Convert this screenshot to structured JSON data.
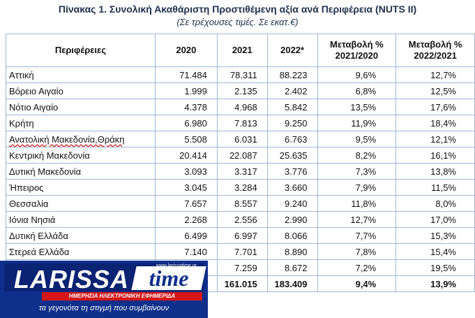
{
  "title": "Πίνακας 1. Συνολική Ακαθάριστη Προστιθέμενη αξία ανά  Περιφέρεια (NUTS II)",
  "subtitle": "(Σε τρέχουσες τιμές. Σε εκατ.€)",
  "table": {
    "headers": [
      "Περιφέρειες",
      "2020",
      "2021",
      "2022*",
      "Μεταβολή % 2021/2020",
      "Μεταβολή % 2022/2021"
    ],
    "rows": [
      [
        "Αττική",
        "71.484",
        "78.311",
        "88.223",
        "9,6%",
        "12,7%"
      ],
      [
        "Βόρειο Αιγαίο",
        "1.999",
        "2.135",
        "2.402",
        "6,8%",
        "12,5%"
      ],
      [
        "Νότιο Αιγαίο",
        "4.378",
        "4.968",
        "5.842",
        "13,5%",
        "17,6%"
      ],
      [
        "Κρήτη",
        "6.980",
        "7.813",
        "9.250",
        "11,9%",
        "18,4%"
      ],
      [
        "Ανατολική Μακεδονία,Θράκη",
        "5.508",
        "6.031",
        "6.763",
        "9,5%",
        "12,1%"
      ],
      [
        "Κεντρική Μακεδονία",
        "20.414",
        "22.087",
        "25.635",
        "8,2%",
        "16,1%"
      ],
      [
        "Δυτική Μακεδονία",
        "3.093",
        "3.317",
        "3.776",
        "7,3%",
        "13,8%"
      ],
      [
        "Ήπειρος",
        "3.045",
        "3.284",
        "3.660",
        "7,9%",
        "11,5%"
      ],
      [
        "Θεσσαλία",
        "7.657",
        "8.557",
        "9.240",
        "11,8%",
        "8,0%"
      ],
      [
        "Ιόνια Νησιά",
        "2.268",
        "2.556",
        "2.990",
        "12,7%",
        "17,0%"
      ],
      [
        "Δυτική Ελλάδα",
        "6.499",
        "6.997",
        "8.066",
        "7,7%",
        "15,3%"
      ],
      [
        "Στερεά Ελλάδα",
        "7.140",
        "7.701",
        "8.890",
        "7,8%",
        "15,4%"
      ],
      [
        "",
        "",
        "7.259",
        "8.672",
        "7,2%",
        "19,5%"
      ]
    ],
    "total": [
      "",
      "",
      "161.015",
      "183.409",
      "9,4%",
      "13,9%"
    ]
  },
  "logo": {
    "word": "LARISSA",
    "time": "time",
    "url": "www.larissatime.gr",
    "bar": "ΗΜΕΡΗΣΙΑ ΗΛΕΚΤΡΟΝΙΚΗ ΕΦΗΜΕΡΙΔΑ",
    "tagline": "τα γεγονότα τη στιγμή που συμβαίνουν"
  }
}
